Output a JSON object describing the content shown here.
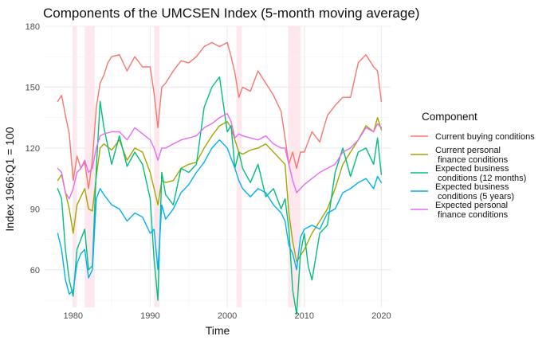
{
  "chart_data": {
    "type": "line",
    "title": "Components of the UMCSEN Index (5-month moving average)",
    "xlabel": "Time",
    "ylabel": "Index 1966:Q1 = 100",
    "xlim": [
      1976.3,
      2021.2
    ],
    "ylim": [
      41.5,
      180
    ],
    "x_ticks": [
      1980,
      1990,
      2000,
      2010,
      2020
    ],
    "y_ticks": [
      60,
      90,
      120,
      150,
      180
    ],
    "grid": true,
    "legend": {
      "title": "Component",
      "position": "right"
    },
    "recessions": [
      [
        1980.0,
        1980.5
      ],
      [
        1981.5,
        1982.8
      ],
      [
        1990.5,
        1991.2
      ],
      [
        2001.2,
        2001.9
      ],
      [
        2007.9,
        2009.5
      ]
    ],
    "series": [
      {
        "name": "Current buying conditions",
        "legend_label": [
          "Current buying conditions"
        ],
        "color": "#F8766D",
        "x": [
          1978.0,
          1978.5,
          1979.0,
          1979.5,
          1980.0,
          1980.5,
          1981.0,
          1981.5,
          1982.0,
          1982.5,
          1983.0,
          1983.5,
          1984.0,
          1984.5,
          1985.0,
          1986.0,
          1987.0,
          1988.0,
          1989.0,
          1990.0,
          1990.5,
          1991.0,
          1991.5,
          1992.0,
          1993.0,
          1994.0,
          1995.0,
          1996.0,
          1997.0,
          1998.0,
          1999.0,
          2000.0,
          2000.5,
          2001.0,
          2001.5,
          2002.0,
          2003.0,
          2004.0,
          2005.0,
          2006.0,
          2007.0,
          2008.0,
          2008.5,
          2009.0,
          2009.5,
          2010.0,
          2011.0,
          2012.0,
          2013.0,
          2014.0,
          2015.0,
          2016.0,
          2017.0,
          2018.0,
          2019.0,
          2019.5,
          2020.0
        ],
        "y": [
          143,
          146,
          136,
          127,
          104,
          116,
          110,
          113,
          100,
          114,
          140,
          152,
          156,
          162,
          165,
          166,
          158,
          165,
          160,
          160,
          147,
          130,
          150,
          152,
          158,
          163,
          162,
          165,
          170,
          172,
          170,
          172,
          165,
          157,
          145,
          150,
          148,
          158,
          152,
          146,
          138,
          112,
          118,
          110,
          118,
          118,
          128,
          123,
          136,
          141,
          145,
          145,
          162,
          166,
          160,
          158,
          143
        ]
      },
      {
        "name": "Current personal finance conditions",
        "legend_label": [
          "Current personal",
          "finance conditions"
        ],
        "color": "#A3A500",
        "x": [
          1978.0,
          1978.5,
          1979.0,
          1979.5,
          1980.0,
          1980.5,
          1981.0,
          1981.5,
          1982.0,
          1982.5,
          1983.0,
          1983.5,
          1984.0,
          1985.0,
          1986.0,
          1987.0,
          1988.0,
          1989.0,
          1990.0,
          1990.5,
          1991.0,
          1991.5,
          1992.0,
          1993.0,
          1994.0,
          1995.0,
          1996.0,
          1997.0,
          1998.0,
          1999.0,
          2000.0,
          2000.5,
          2001.0,
          2001.5,
          2002.0,
          2003.0,
          2004.0,
          2005.0,
          2006.0,
          2007.0,
          2007.5,
          2008.0,
          2008.5,
          2009.0,
          2009.5,
          2010.0,
          2011.0,
          2012.0,
          2013.0,
          2014.0,
          2015.0,
          2016.0,
          2017.0,
          2018.0,
          2019.0,
          2019.5,
          2020.0
        ],
        "y": [
          104,
          107,
          98,
          90,
          78,
          92,
          96,
          100,
          90,
          89,
          106,
          120,
          122,
          119,
          124,
          114,
          120,
          118,
          108,
          100,
          92,
          104,
          103,
          104,
          110,
          112,
          113,
          120,
          126,
          131,
          133,
          130,
          124,
          118,
          117,
          119,
          120,
          122,
          118,
          114,
          112,
          88,
          74,
          64,
          67,
          70,
          78,
          84,
          90,
          100,
          112,
          118,
          124,
          131,
          128,
          135,
          129
        ]
      },
      {
        "name": "Expected business conditions (12 months)",
        "legend_label": [
          "Expected business",
          "conditions (12 months)"
        ],
        "color": "#00BF7D",
        "x": [
          1978.0,
          1978.5,
          1979.0,
          1979.5,
          1980.0,
          1980.5,
          1981.0,
          1981.5,
          1982.0,
          1982.5,
          1983.0,
          1983.5,
          1984.0,
          1985.0,
          1986.0,
          1987.0,
          1988.0,
          1989.0,
          1990.0,
          1990.5,
          1991.0,
          1991.5,
          1992.0,
          1993.0,
          1994.0,
          1995.0,
          1996.0,
          1997.0,
          1998.0,
          1999.0,
          2000.0,
          2000.5,
          2001.0,
          2001.5,
          2002.0,
          2003.0,
          2004.0,
          2005.0,
          2006.0,
          2007.0,
          2007.5,
          2008.0,
          2008.5,
          2009.0,
          2009.5,
          2010.0,
          2010.5,
          2011.0,
          2012.0,
          2013.0,
          2014.0,
          2015.0,
          2016.0,
          2017.0,
          2018.0,
          2019.0,
          2019.5,
          2020.0
        ],
        "y": [
          100,
          95,
          70,
          55,
          47,
          70,
          75,
          80,
          60,
          62,
          110,
          143,
          130,
          112,
          126,
          111,
          118,
          112,
          95,
          65,
          45,
          108,
          97,
          92,
          110,
          108,
          112,
          140,
          150,
          155,
          128,
          131,
          110,
          118,
          110,
          103,
          112,
          96,
          100,
          90,
          95,
          80,
          50,
          38,
          68,
          78,
          62,
          55,
          78,
          82,
          108,
          120,
          106,
          118,
          120,
          112,
          125,
          107
        ]
      },
      {
        "name": "Expected business conditions (5 years)",
        "legend_label": [
          "Expected business",
          "conditions (5 years)"
        ],
        "color": "#00B0F6",
        "x": [
          1978.0,
          1978.5,
          1979.0,
          1979.5,
          1980.0,
          1980.5,
          1981.0,
          1981.5,
          1982.0,
          1982.5,
          1983.0,
          1983.5,
          1984.0,
          1985.0,
          1986.0,
          1987.0,
          1988.0,
          1989.0,
          1990.0,
          1990.5,
          1991.0,
          1991.5,
          1992.0,
          1993.0,
          1994.0,
          1995.0,
          1996.0,
          1997.0,
          1998.0,
          1999.0,
          2000.0,
          2000.5,
          2001.0,
          2001.5,
          2002.0,
          2003.0,
          2004.0,
          2005.0,
          2006.0,
          2007.0,
          2007.5,
          2008.0,
          2008.5,
          2009.0,
          2009.5,
          2010.0,
          2011.0,
          2012.0,
          2013.0,
          2014.0,
          2015.0,
          2016.0,
          2017.0,
          2018.0,
          2019.0,
          2019.5,
          2020.0
        ],
        "y": [
          78,
          70,
          55,
          48,
          50,
          63,
          68,
          70,
          56,
          60,
          95,
          100,
          97,
          92,
          90,
          84,
          88,
          86,
          78,
          80,
          60,
          92,
          85,
          90,
          98,
          102,
          108,
          113,
          120,
          124,
          120,
          115,
          110,
          104,
          100,
          96,
          100,
          98,
          92,
          88,
          84,
          72,
          68,
          60,
          76,
          80,
          82,
          80,
          88,
          90,
          98,
          100,
          103,
          105,
          100,
          106,
          103
        ]
      },
      {
        "name": "Expected personal finance conditions",
        "legend_label": [
          "Expected personal",
          "finance conditions"
        ],
        "color": "#E76BF3",
        "x": [
          1978.0,
          1978.5,
          1979.0,
          1979.5,
          1980.0,
          1980.5,
          1981.0,
          1981.5,
          1982.0,
          1982.5,
          1983.0,
          1983.5,
          1984.0,
          1985.0,
          1986.0,
          1987.0,
          1988.0,
          1989.0,
          1990.0,
          1990.5,
          1991.0,
          1991.5,
          1992.0,
          1993.0,
          1994.0,
          1995.0,
          1996.0,
          1997.0,
          1998.0,
          1999.0,
          2000.0,
          2000.5,
          2001.0,
          2001.5,
          2002.0,
          2003.0,
          2004.0,
          2005.0,
          2006.0,
          2007.0,
          2007.5,
          2008.0,
          2008.5,
          2009.0,
          2009.5,
          2010.0,
          2011.0,
          2012.0,
          2013.0,
          2014.0,
          2015.0,
          2016.0,
          2017.0,
          2018.0,
          2019.0,
          2019.5,
          2020.0
        ],
        "y": [
          110,
          108,
          98,
          95,
          100,
          108,
          110,
          114,
          108,
          110,
          120,
          126,
          127,
          128,
          128,
          124,
          130,
          127,
          124,
          120,
          114,
          120,
          120,
          122,
          124,
          125,
          126,
          130,
          132,
          135,
          137,
          133,
          125,
          127,
          126,
          125,
          124,
          126,
          122,
          120,
          120,
          112,
          104,
          98,
          100,
          102,
          105,
          108,
          110,
          112,
          118,
          120,
          124,
          130,
          128,
          132,
          130
        ]
      }
    ]
  }
}
